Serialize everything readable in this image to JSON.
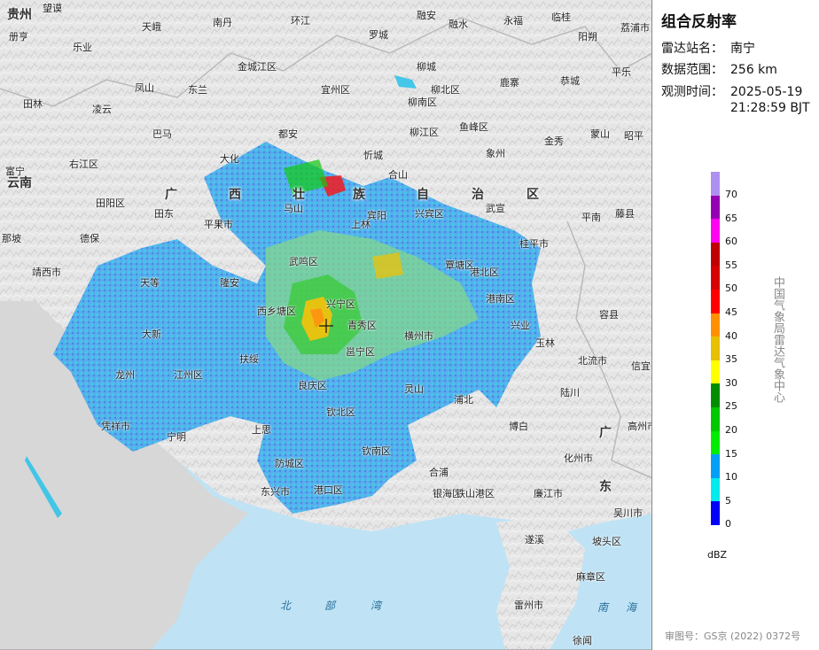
{
  "panel": {
    "title": "组合反射率",
    "station_label": "雷达站名：",
    "station_value": "南宁",
    "range_label": "数据范围：",
    "range_value": "256 km",
    "time_label": "观测时间：",
    "time_date": "2025-05-19",
    "time_clock": "21:28:59 BJT",
    "agency": "中国气象局雷达气象中心",
    "approval": "审图号：GS京 (2022) 0372号"
  },
  "legend": {
    "unit": "dBZ",
    "ticks": [
      "70",
      "65",
      "60",
      "55",
      "50",
      "45",
      "40",
      "35",
      "30",
      "25",
      "20",
      "15",
      "10",
      "5",
      "0"
    ],
    "colors": [
      "#ad90f0",
      "#9600b4",
      "#ff00f0",
      "#c00000",
      "#d60000",
      "#ff0000",
      "#ff9000",
      "#e7c000",
      "#ffff00",
      "#008e00",
      "#00c800",
      "#00ec00",
      "#01a0f6",
      "#00ecec",
      "#0000f6"
    ]
  },
  "map": {
    "provinces": [
      "贵州",
      "云南",
      "广",
      "西",
      "壮",
      "族",
      "自",
      "治",
      "区",
      "广",
      "东"
    ],
    "seas": [
      "北",
      "部",
      "湾",
      "南",
      "海"
    ],
    "cities": [
      "贵州",
      "望谟",
      "册亨",
      "乐业",
      "天峨",
      "南丹",
      "环江",
      "融水",
      "融安",
      "永福",
      "临桂",
      "阳朔",
      "荔浦",
      "罗城",
      "柳城",
      "鹿寨",
      "荔浦市",
      "平乐",
      "恭城",
      "金城江区",
      "宜州区",
      "柳北区",
      "柳南区",
      "田林",
      "凌云",
      "凤山",
      "东兰",
      "巴马",
      "都安",
      "忻城",
      "柳江区",
      "鱼峰区",
      "象州",
      "金秀",
      "蒙山",
      "昭平",
      "右江区",
      "田阳区",
      "田东",
      "大化",
      "马山",
      "合山",
      "宾阳",
      "兴宾区",
      "武宣",
      "平南",
      "藤县",
      "富宁",
      "那坡",
      "德保",
      "平果市",
      "上林",
      "桂平市",
      "港北区",
      "靖西市",
      "天等",
      "武鸣区",
      "覃塘区",
      "港南区",
      "隆安",
      "兴宁区",
      "西乡塘区",
      "青秀区",
      "横州市",
      "容县",
      "大新",
      "邕宁区",
      "兴业",
      "玉林",
      "北流市",
      "龙州",
      "江州区",
      "扶绥",
      "良庆区",
      "灵山",
      "陆川",
      "信宜",
      "凭祥市",
      "宁明",
      "上思",
      "钦北区",
      "浦北",
      "博白",
      "高州市",
      "防城区",
      "钦南区",
      "合浦",
      "化州市",
      "东兴市",
      "港口区",
      "银海区",
      "铁山港区",
      "廉江市",
      "吴川市",
      "遂溪",
      "坡头区",
      "麻章区",
      "雷州市",
      "徐闻"
    ]
  },
  "colors": {
    "land": "#e7e7e7",
    "sea": "#bfe3f5",
    "border": "#b8b8b8"
  }
}
